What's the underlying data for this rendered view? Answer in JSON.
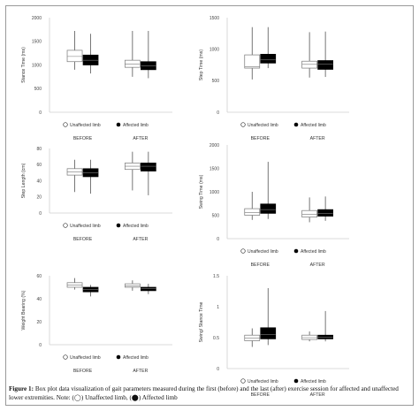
{
  "caption": {
    "label": "Figure 1:",
    "text": "Box plot data visualization of gait parameters measured during the first (before) and the last (after) exercise session for affected and unaffected lower extremities. Note: (",
    "sym_open": "◯",
    "mid": ") Unaffected limb, (",
    "sym_filled": "⬤",
    "end": ") Affected limb"
  },
  "legend": {
    "unaffected": "Unaffected limb",
    "affected": "Affected limb"
  },
  "colors": {
    "unaffected": "#ffffff",
    "affected": "#000000",
    "axis": "#cfcfcf",
    "whisker": "#555555"
  },
  "chart_data": [
    {
      "type": "box",
      "ylabel": "Stance Time (ms)",
      "ylim": [
        0,
        2000
      ],
      "yticks": [
        "0",
        "500",
        "1000",
        "1500",
        "2000"
      ],
      "categories": [
        "BEFORE",
        "AFTER"
      ],
      "series": [
        {
          "name": "Unaffected limb",
          "boxes": [
            {
              "min": 900,
              "q1": 1070,
              "median": 1180,
              "q3": 1310,
              "max": 1720
            },
            {
              "min": 750,
              "q1": 950,
              "median": 1020,
              "q3": 1100,
              "max": 1720
            }
          ]
        },
        {
          "name": "Affected limb",
          "boxes": [
            {
              "min": 820,
              "q1": 1000,
              "median": 1100,
              "q3": 1210,
              "max": 1660
            },
            {
              "min": 720,
              "q1": 900,
              "median": 980,
              "q3": 1070,
              "max": 1720
            }
          ]
        }
      ]
    },
    {
      "type": "box",
      "ylabel": "Step Time (ms)",
      "ylim": [
        0,
        1500
      ],
      "yticks": [
        "0",
        "500",
        "1000",
        "1500"
      ],
      "categories": [
        "BEFORE",
        "AFTER"
      ],
      "series": [
        {
          "name": "Unaffected limb",
          "boxes": [
            {
              "min": 520,
              "q1": 700,
              "median": 720,
              "q3": 910,
              "max": 1350
            },
            {
              "min": 550,
              "q1": 700,
              "median": 760,
              "q3": 810,
              "max": 1270
            }
          ]
        },
        {
          "name": "Affected limb",
          "boxes": [
            {
              "min": 700,
              "q1": 780,
              "median": 830,
              "q3": 920,
              "max": 1350
            },
            {
              "min": 560,
              "q1": 680,
              "median": 760,
              "q3": 820,
              "max": 1280
            }
          ]
        }
      ]
    },
    {
      "type": "box",
      "ylabel": "Step Length (cm)",
      "ylim": [
        0,
        80
      ],
      "yticks": [
        "0",
        "20",
        "40",
        "60",
        "80"
      ],
      "categories": [
        "BEFORE",
        "AFTER"
      ],
      "series": [
        {
          "name": "Unaffected limb",
          "boxes": [
            {
              "min": 26,
              "q1": 47,
              "median": 51,
              "q3": 55,
              "max": 66
            },
            {
              "min": 28,
              "q1": 54,
              "median": 58,
              "q3": 62,
              "max": 76
            }
          ]
        },
        {
          "name": "Affected limb",
          "boxes": [
            {
              "min": 24,
              "q1": 45,
              "median": 50,
              "q3": 55,
              "max": 66
            },
            {
              "min": 22,
              "q1": 52,
              "median": 58,
              "q3": 62,
              "max": 76
            }
          ]
        }
      ]
    },
    {
      "type": "box",
      "ylabel": "Swing Time (ms)",
      "ylim": [
        0,
        2000
      ],
      "yticks": [
        "0",
        "500",
        "1000",
        "1500",
        "2000"
      ],
      "categories": [
        "BEFORE",
        "AFTER"
      ],
      "series": [
        {
          "name": "Unaffected limb",
          "boxes": [
            {
              "min": 400,
              "q1": 500,
              "median": 560,
              "q3": 640,
              "max": 1000
            },
            {
              "min": 350,
              "q1": 460,
              "median": 520,
              "q3": 600,
              "max": 880
            }
          ]
        },
        {
          "name": "Affected limb",
          "boxes": [
            {
              "min": 420,
              "q1": 540,
              "median": 620,
              "q3": 740,
              "max": 1640
            },
            {
              "min": 380,
              "q1": 480,
              "median": 540,
              "q3": 620,
              "max": 900
            }
          ]
        }
      ]
    },
    {
      "type": "box",
      "ylabel": "Weight Bearing (%)",
      "ylim": [
        0,
        60
      ],
      "yticks": [
        "0",
        "20",
        "40",
        "60"
      ],
      "categories": [
        "BEFORE",
        "AFTER"
      ],
      "series": [
        {
          "name": "Unaffected limb",
          "boxes": [
            {
              "min": 48,
              "q1": 50,
              "median": 52,
              "q3": 54,
              "max": 58
            },
            {
              "min": 47,
              "q1": 50,
              "median": 51,
              "q3": 53,
              "max": 56
            }
          ]
        },
        {
          "name": "Affected limb",
          "boxes": [
            {
              "min": 42,
              "q1": 46,
              "median": 48,
              "q3": 50,
              "max": 52
            },
            {
              "min": 44,
              "q1": 47,
              "median": 49,
              "q3": 50,
              "max": 53
            }
          ]
        }
      ]
    },
    {
      "type": "box",
      "ylabel": "Swing/ Stance Time",
      "ylim": [
        0,
        1.5
      ],
      "yticks": [
        "0",
        "0.5",
        "1",
        "1.5"
      ],
      "categories": [
        "BEFORE",
        "AFTER"
      ],
      "series": [
        {
          "name": "Unaffected limb",
          "boxes": [
            {
              "min": 0.35,
              "q1": 0.45,
              "median": 0.49,
              "q3": 0.54,
              "max": 0.65
            },
            {
              "min": 0.44,
              "q1": 0.47,
              "median": 0.5,
              "q3": 0.54,
              "max": 0.6
            }
          ]
        },
        {
          "name": "Affected limb",
          "boxes": [
            {
              "min": 0.38,
              "q1": 0.48,
              "median": 0.55,
              "q3": 0.66,
              "max": 1.3
            },
            {
              "min": 0.44,
              "q1": 0.48,
              "median": 0.51,
              "q3": 0.54,
              "max": 0.93
            }
          ]
        }
      ]
    }
  ]
}
